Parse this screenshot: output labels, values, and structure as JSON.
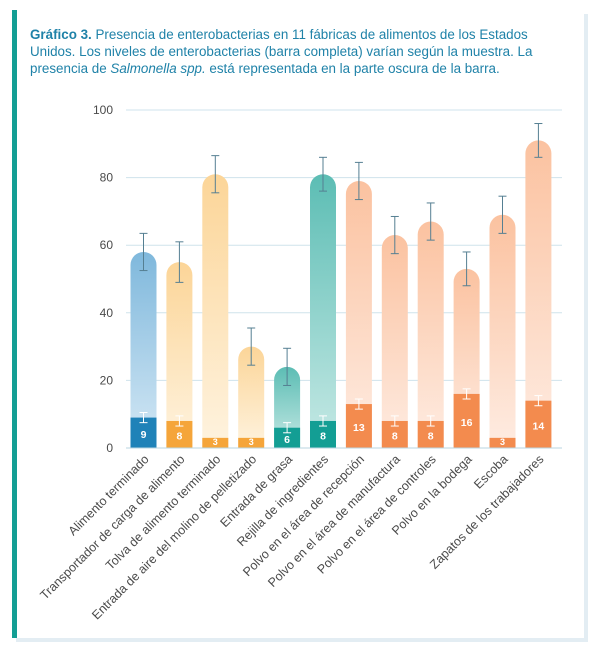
{
  "caption": {
    "label": "Gráfico 3.",
    "text_part1": " Presencia de enterobacterias en 11 fábricas de alimentos de los Estados Unidos. Los niveles de enterobacterias (barra completa) varían según la muestra. La presencia de ",
    "text_italic": "Salmonella spp.",
    "text_part2": " está representada en la parte oscura de la barra."
  },
  "colors": {
    "accent": "#139e94",
    "caption_text": "#1f82a8",
    "axis_text": "#4a4a4a",
    "gridline": "#cfe3ec",
    "error_bar": "#557f92"
  },
  "chart_data": {
    "type": "bar",
    "ylim": [
      0,
      100
    ],
    "yticks": [
      0,
      20,
      40,
      60,
      80,
      100
    ],
    "grid": true,
    "categories": [
      "Alimento terminado",
      "Transportador de carga de alimento",
      "Tolva de alimento terminado",
      "Entrada de aire del molino de pelletizado",
      "Entrada de grasa",
      "Rejilla de ingredientes",
      "Polvo en el área de recepción",
      "Polvo en el área de manufactura",
      "Polvo en el área de controles",
      "Polvo en la bodega",
      "Escoba",
      "Zapatos de los trabajadores"
    ],
    "series": [
      {
        "name": "Enterobacterias (barra completa)",
        "values": [
          58,
          55,
          81,
          30,
          24,
          81,
          79,
          63,
          67,
          53,
          69,
          91
        ],
        "error": [
          5.5,
          6,
          5.5,
          5.5,
          5.5,
          5,
          5.5,
          5.5,
          5.5,
          5,
          5.5,
          5
        ],
        "colors": [
          "#7fb8dc",
          "#fcd598",
          "#fcd598",
          "#fcd598",
          "#5cbdb4",
          "#5cbdb4",
          "#fbc2a0",
          "#fbc2a0",
          "#fbc2a0",
          "#fbc2a0",
          "#fbc2a0",
          "#fbc2a0"
        ],
        "light_colors": [
          "#d4e8f5",
          "#fef3df",
          "#fef3df",
          "#fef3df",
          "#c6e9e5",
          "#c6e9e5",
          "#feece2",
          "#feece2",
          "#feece2",
          "#feece2",
          "#feece2",
          "#feece2"
        ]
      },
      {
        "name": "Salmonella spp. (parte oscura)",
        "values": [
          9,
          8,
          3,
          3,
          6,
          8,
          13,
          8,
          8,
          16,
          3,
          14
        ],
        "labels": [
          "9",
          "8",
          "3",
          "3",
          "6",
          "8",
          "13",
          "8",
          "8",
          "16",
          "3",
          "14"
        ],
        "error": [
          1.5,
          1.5,
          0,
          0,
          1.5,
          1.5,
          1.5,
          1.5,
          1.5,
          1.5,
          0,
          1.5
        ],
        "colors": [
          "#1f82b8",
          "#f5a53a",
          "#f5a53a",
          "#f5a53a",
          "#139e94",
          "#139e94",
          "#f38b4e",
          "#f38b4e",
          "#f38b4e",
          "#f38b4e",
          "#f38b4e",
          "#f38b4e"
        ]
      }
    ]
  }
}
